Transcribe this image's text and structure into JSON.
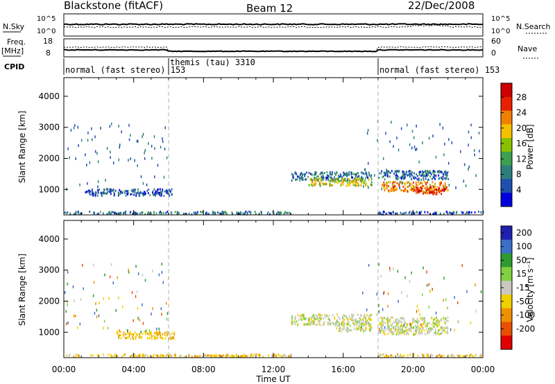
{
  "header": {
    "station": "Blackstone (fitACF)",
    "beam": "Beam 12",
    "date": "22/Dec/2008"
  },
  "top_panels": {
    "nsky_label": "N.Sky",
    "nsearch_label": "N.Search",
    "nsky_ticks": [
      "10^5",
      "10^0"
    ],
    "nsearch_ticks": [
      "10^5",
      "10^0"
    ],
    "freq_label": "Freq.",
    "freq_unit": "[MHz]",
    "freq_ticks": [
      "18",
      "8"
    ],
    "nave_label": "Nave",
    "nave_ticks": [
      "60",
      "0"
    ],
    "cpid_label": "CPID",
    "cpid_segments": [
      {
        "label": "normal (fast stereo) 153",
        "start_h": 0,
        "end_h": 6
      },
      {
        "label": "themis (tau) 3310",
        "start_h": 6,
        "end_h": 18
      },
      {
        "label": "normal (fast stereo) 153",
        "start_h": 18,
        "end_h": 24
      }
    ]
  },
  "colors": {
    "power_scale": [
      "#0000dd",
      "#1f4fb0",
      "#2e7d7d",
      "#3ca050",
      "#88c000",
      "#f5c000",
      "#f08000",
      "#e82000",
      "#cc0000"
    ],
    "velocity_scale": [
      "#2020b0",
      "#3c70c8",
      "#2f9a2f",
      "#80d040",
      "#c8c8c0",
      "#f0d000",
      "#f09000",
      "#e85000",
      "#e00000"
    ],
    "dashed_line": "#b0b0b0"
  },
  "chart_data": [
    {
      "type": "heatmap",
      "title": "",
      "xlabel": "Time UT",
      "ylabel": "Slant Range [km]",
      "x_ticks": [
        "00:00",
        "04:00",
        "08:00",
        "12:00",
        "16:00",
        "20:00",
        "00:00"
      ],
      "y_ticks": [
        "1000",
        "2000",
        "3000",
        "4000"
      ],
      "ylim": [
        180,
        4600
      ],
      "xlim_hours": [
        0,
        24
      ],
      "colorbar_label": "Power [dB]",
      "colorbar_ticks": [
        "28",
        "24",
        "20",
        "16",
        "12",
        "8",
        "4"
      ],
      "colorbar_range": [
        0,
        32
      ],
      "regions": [
        {
          "t0": 1.2,
          "t1": 6.3,
          "r_center": 900,
          "r_half": 110,
          "value": 6
        },
        {
          "t0": 13.0,
          "t1": 17.6,
          "r_center": 1420,
          "r_half": 140,
          "value": 8
        },
        {
          "t0": 14.0,
          "t1": 17.6,
          "r_center": 1230,
          "r_half": 120,
          "value": 18
        },
        {
          "t0": 18.0,
          "t1": 22.0,
          "r_center": 1450,
          "r_half": 150,
          "value": 7
        },
        {
          "t0": 18.2,
          "t1": 22.0,
          "r_center": 1080,
          "r_half": 170,
          "value": 22
        },
        {
          "t0": 20.0,
          "t1": 21.8,
          "r_center": 950,
          "r_half": 110,
          "value": 28
        },
        {
          "t0": 0.0,
          "t1": 13.0,
          "r_center": 240,
          "r_half": 45,
          "value": 8
        },
        {
          "t0": 18.0,
          "t1": 24.0,
          "r_center": 240,
          "r_half": 45,
          "value": 6
        }
      ]
    },
    {
      "type": "heatmap",
      "title": "",
      "xlabel": "Time UT",
      "ylabel": "Slant Range [km]",
      "x_ticks": [
        "00:00",
        "04:00",
        "08:00",
        "12:00",
        "16:00",
        "20:00",
        "00:00"
      ],
      "y_ticks": [
        "1000",
        "2000",
        "3000",
        "4000"
      ],
      "ylim": [
        180,
        4600
      ],
      "xlim_hours": [
        0,
        24
      ],
      "colorbar_label": "Velocity [m s⁻¹]",
      "colorbar_ticks": [
        "200",
        "100",
        "50",
        "15",
        "-15",
        "-50",
        "-100",
        "-200"
      ],
      "colorbar_range": [
        -250,
        250
      ],
      "regions": [
        {
          "t0": 3.0,
          "t1": 6.3,
          "r_center": 900,
          "r_half": 120,
          "value": -40
        },
        {
          "t0": 13.0,
          "t1": 17.6,
          "r_center": 1400,
          "r_half": 170,
          "value": 0
        },
        {
          "t0": 15.5,
          "t1": 17.6,
          "r_center": 1150,
          "r_half": 130,
          "value": 0
        },
        {
          "t0": 18.0,
          "t1": 22.0,
          "r_center": 1200,
          "r_half": 280,
          "value": 0
        },
        {
          "t0": 0.0,
          "t1": 13.0,
          "r_center": 240,
          "r_half": 45,
          "value": -40
        },
        {
          "t0": 18.0,
          "t1": 24.0,
          "r_center": 240,
          "r_half": 45,
          "value": -30
        }
      ]
    }
  ]
}
